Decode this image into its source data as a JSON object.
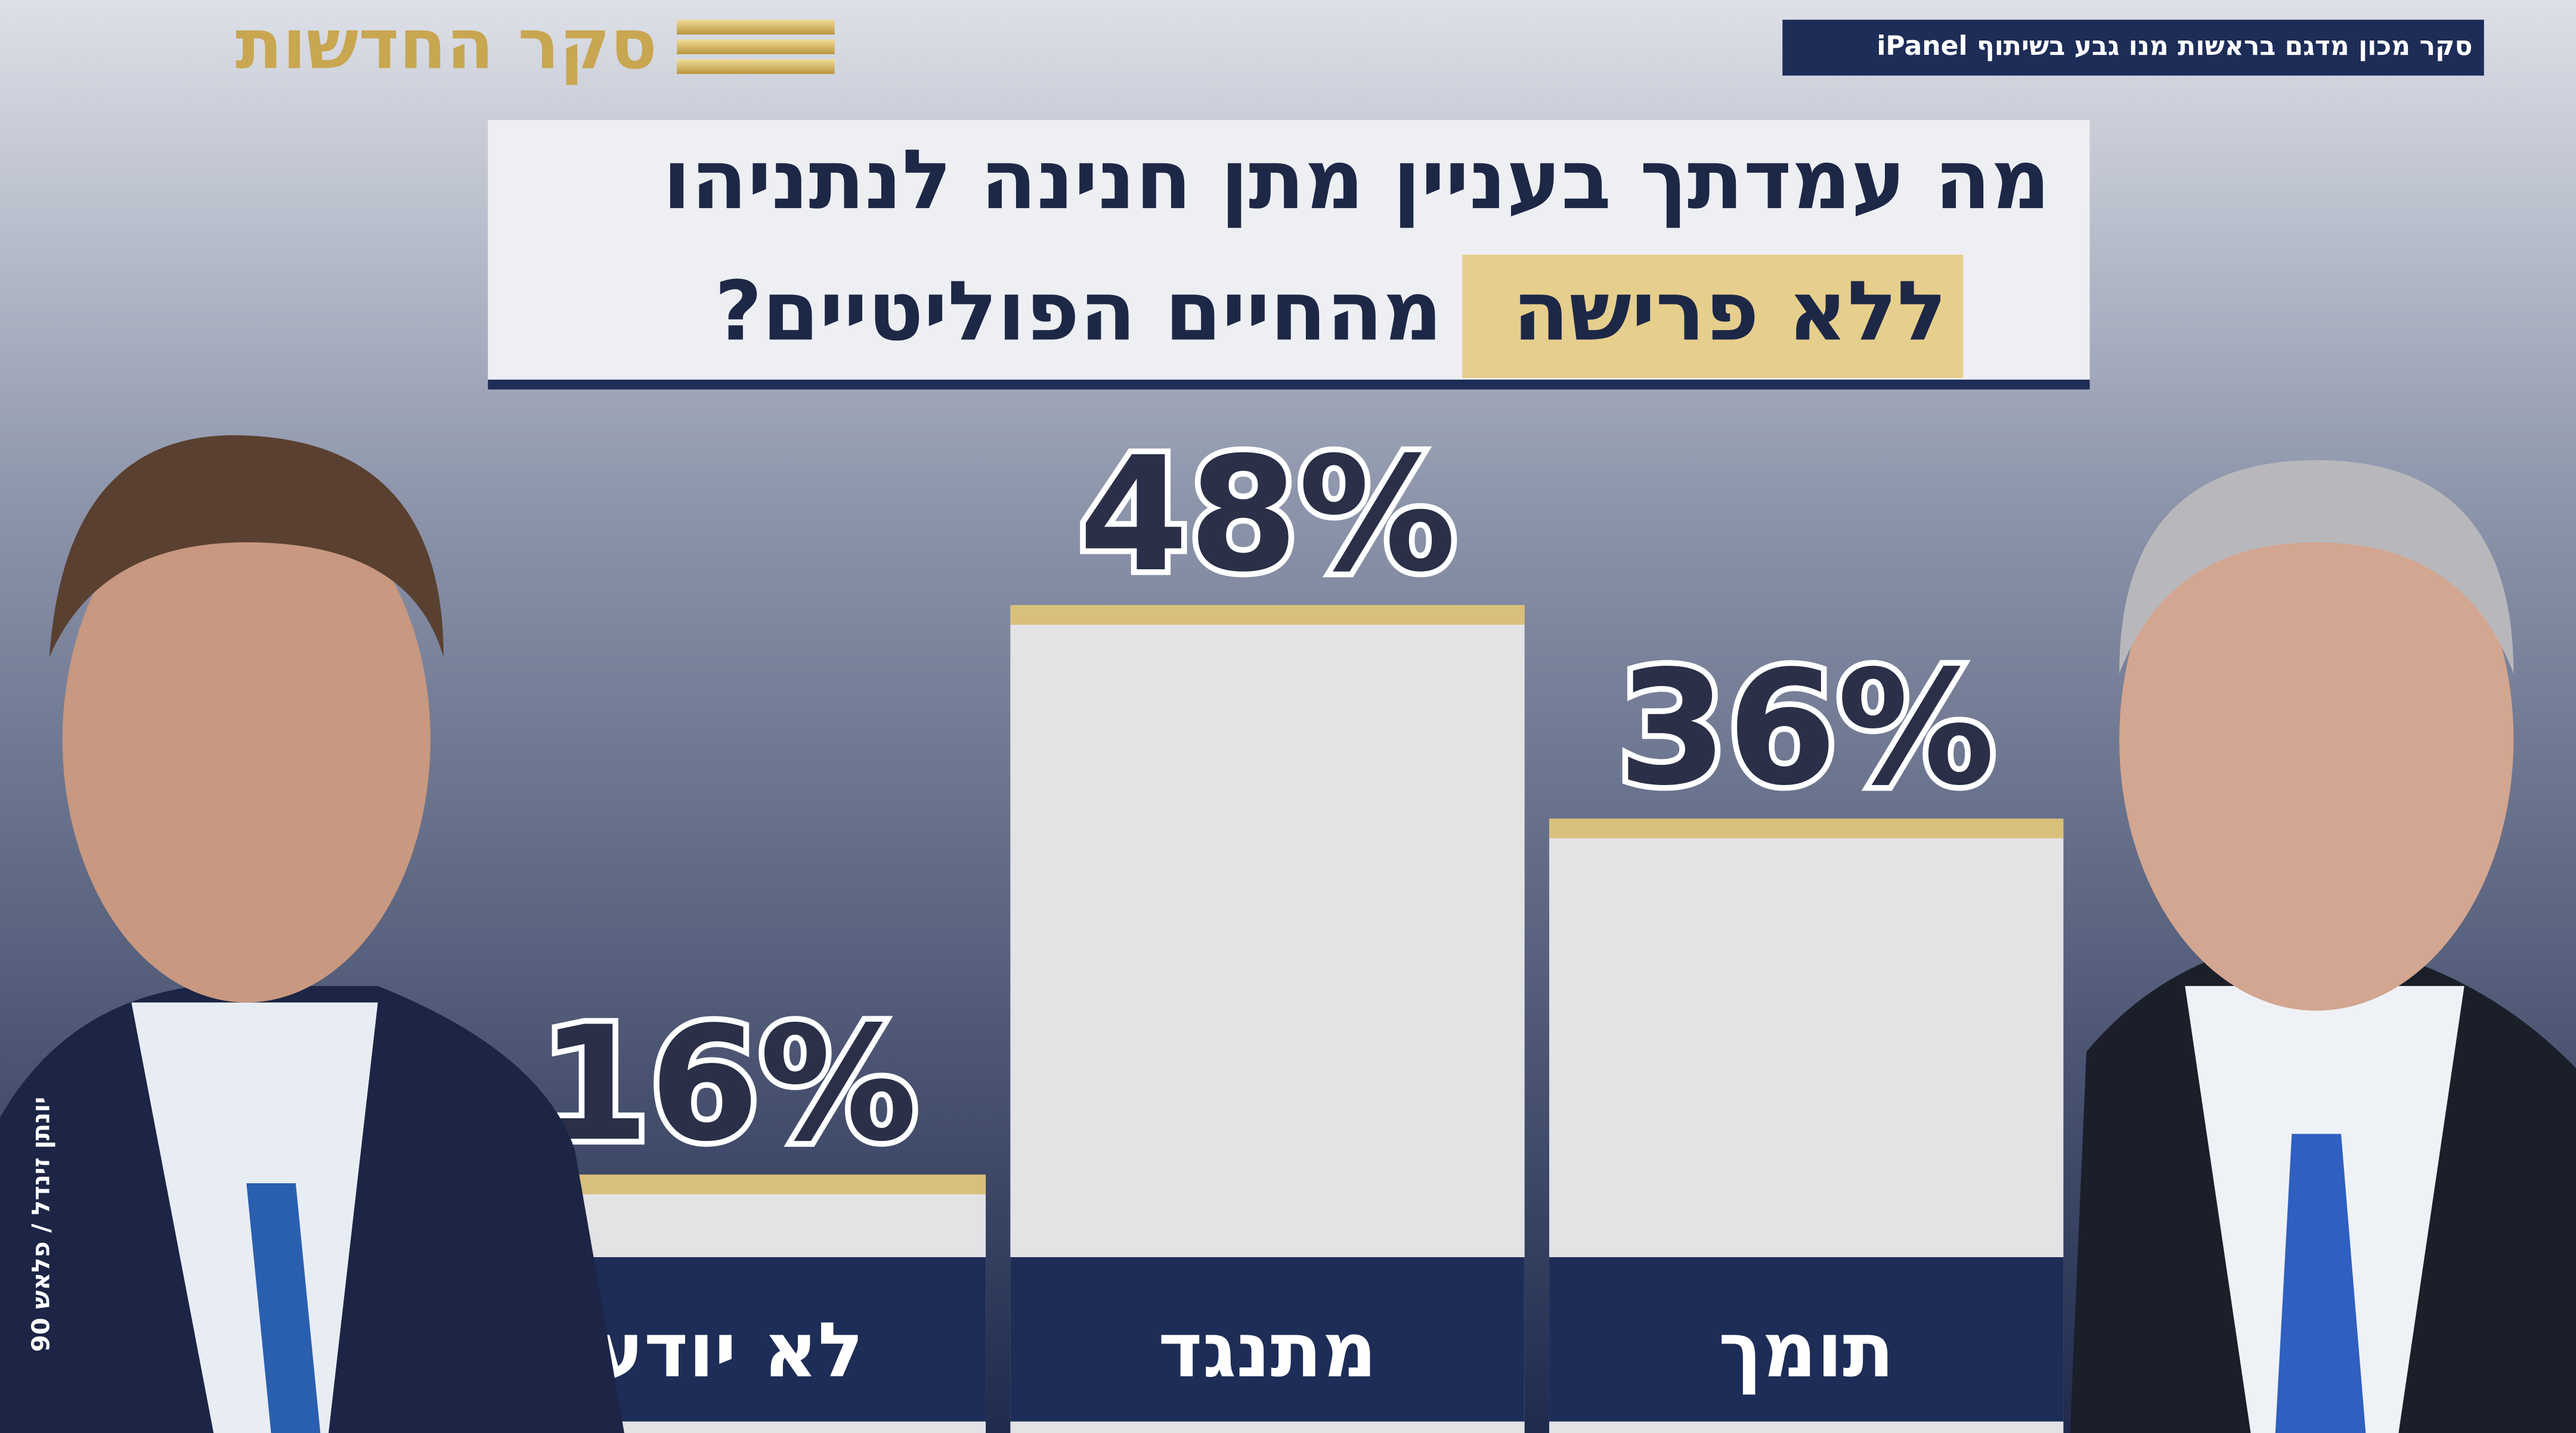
{
  "header": {
    "brand": "סקר החדשות",
    "source": "סקר מכון מדגם בראשות מנו גבע בשיתוף iPanel"
  },
  "photo_credit": "יונתן זינדל / פלאש 90",
  "chart_data": {
    "type": "bar",
    "title": {
      "line1": "מה עמדתך בעניין מתן חנינה לנתניהו",
      "highlight": "ללא פרישה",
      "line2_rest": "מהחיים הפוליטיים?"
    },
    "categories": [
      "לא יודע",
      "מתנגד",
      "תומך"
    ],
    "values": [
      16,
      48,
      36
    ],
    "value_labels": [
      "16%",
      "48%",
      "36%"
    ],
    "color": "#e3e3e6",
    "top_color": "#d9c07a"
  }
}
